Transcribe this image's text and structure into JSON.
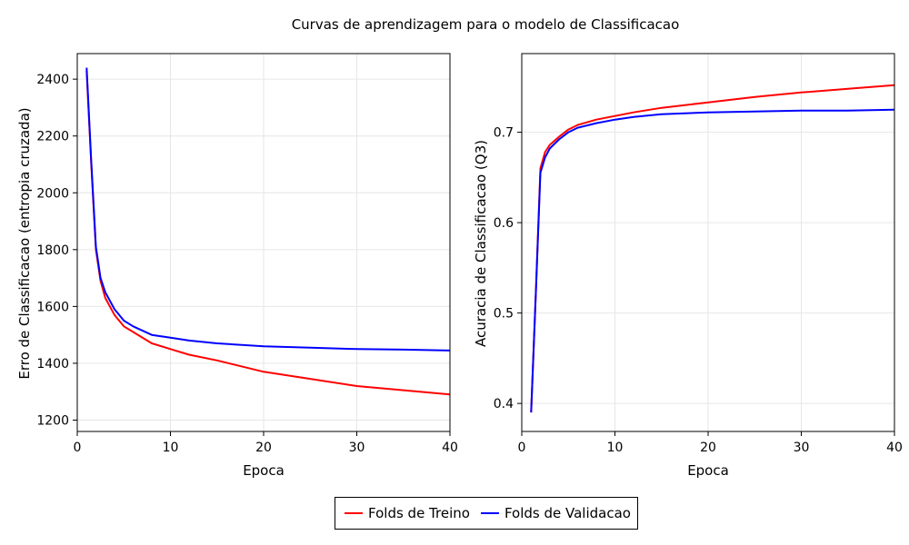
{
  "title": "Curvas de aprendizagem para o modelo de Classificacao",
  "legend": {
    "placement": "bottom-center",
    "entries": [
      {
        "label": "Folds de Treino",
        "color": "#ff0000"
      },
      {
        "label": "Folds de Validacao",
        "color": "#0000ff"
      }
    ]
  },
  "chart_data": [
    {
      "type": "line",
      "xlabel": "Epoca",
      "ylabel": "Erro de Classificacao (entropia cruzada)",
      "xlim": [
        0,
        40
      ],
      "ylim": [
        1160,
        2490
      ],
      "xticks": [
        0,
        10,
        20,
        30,
        40
      ],
      "yticks": [
        1200,
        1400,
        1600,
        1800,
        2000,
        2200,
        2400
      ],
      "grid": true,
      "series": [
        {
          "name": "Folds de Treino",
          "color": "#ff0000",
          "x": [
            1,
            1.5,
            2,
            2.5,
            3,
            4,
            5,
            6,
            8,
            10,
            12,
            15,
            20,
            25,
            30,
            35,
            40
          ],
          "y": [
            2430,
            2100,
            1800,
            1690,
            1630,
            1570,
            1530,
            1510,
            1470,
            1450,
            1430,
            1410,
            1370,
            1345,
            1320,
            1305,
            1290
          ]
        },
        {
          "name": "Folds de Validacao",
          "color": "#0000ff",
          "x": [
            1,
            1.5,
            2,
            2.5,
            3,
            4,
            5,
            6,
            8,
            10,
            12,
            15,
            20,
            25,
            30,
            35,
            40
          ],
          "y": [
            2440,
            2110,
            1810,
            1700,
            1650,
            1590,
            1550,
            1530,
            1500,
            1490,
            1480,
            1470,
            1460,
            1455,
            1450,
            1448,
            1445
          ]
        }
      ]
    },
    {
      "type": "line",
      "xlabel": "Epoca",
      "ylabel": "Acuracia de Classificacao (Q3)",
      "xlim": [
        0,
        40
      ],
      "ylim": [
        0.369,
        0.787
      ],
      "xticks": [
        0,
        10,
        20,
        30,
        40
      ],
      "yticks": [
        0.4,
        0.5,
        0.6,
        0.7
      ],
      "grid": true,
      "series": [
        {
          "name": "Folds de Treino",
          "color": "#ff0000",
          "x": [
            1,
            1.5,
            2,
            2.5,
            3,
            4,
            5,
            6,
            8,
            10,
            12,
            15,
            20,
            25,
            30,
            35,
            40
          ],
          "y": [
            0.39,
            0.52,
            0.66,
            0.678,
            0.686,
            0.695,
            0.703,
            0.708,
            0.714,
            0.718,
            0.722,
            0.727,
            0.733,
            0.739,
            0.744,
            0.748,
            0.752
          ]
        },
        {
          "name": "Folds de Validacao",
          "color": "#0000ff",
          "x": [
            1,
            1.5,
            2,
            2.5,
            3,
            4,
            5,
            6,
            8,
            10,
            12,
            15,
            20,
            25,
            30,
            35,
            40
          ],
          "y": [
            0.39,
            0.52,
            0.655,
            0.672,
            0.682,
            0.692,
            0.7,
            0.705,
            0.71,
            0.714,
            0.717,
            0.72,
            0.722,
            0.723,
            0.724,
            0.724,
            0.725
          ]
        }
      ]
    }
  ]
}
